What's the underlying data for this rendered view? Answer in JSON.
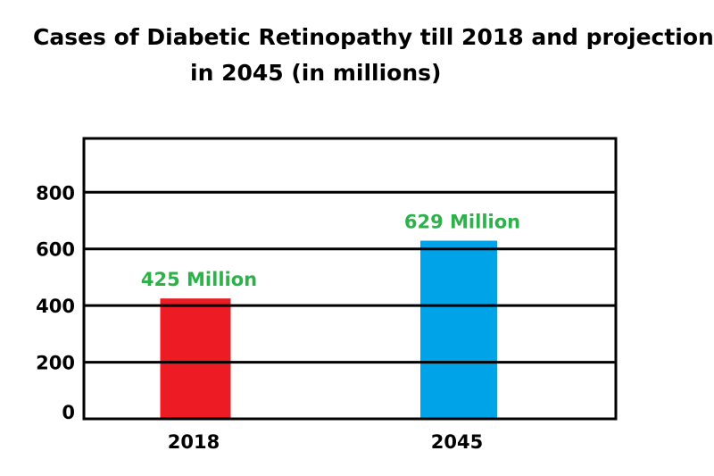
{
  "chart_data": {
    "type": "bar",
    "title": [
      "Cases of Diabetic Retinopathy till 2018 and projection",
      "in 2045 (in millions)"
    ],
    "xlabel": "",
    "ylabel": "",
    "categories": [
      "2018",
      "2045"
    ],
    "values": [
      425,
      629
    ],
    "data_labels": [
      "425 Million",
      "629 Million"
    ],
    "colors": [
      "#ed1c24",
      "#00a2e8"
    ],
    "data_label_color": "#2db24a",
    "yticks": [
      0,
      200,
      400,
      600,
      800
    ],
    "ylim": [
      0,
      990
    ],
    "grid": true,
    "legend": "none"
  }
}
